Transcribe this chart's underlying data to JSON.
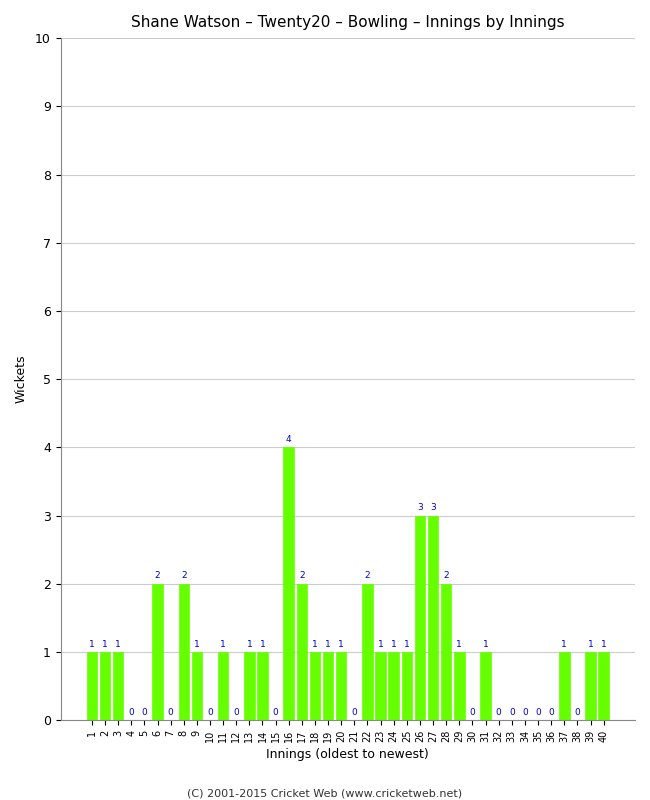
{
  "title": "Shane Watson – Twenty20 – Bowling – Innings by Innings",
  "xlabel": "Innings (oldest to newest)",
  "ylabel": "Wickets",
  "ylim": [
    0,
    10
  ],
  "yticks": [
    0,
    1,
    2,
    3,
    4,
    5,
    6,
    7,
    8,
    9,
    10
  ],
  "bar_color": "#66FF00",
  "bar_edge_color": "#66FF00",
  "label_color": "#0000CC",
  "background_color": "#ffffff",
  "footer": "(C) 2001-2015 Cricket Web (www.cricketweb.net)",
  "innings": [
    1,
    2,
    3,
    4,
    5,
    6,
    7,
    8,
    9,
    10,
    11,
    12,
    13,
    14,
    15,
    16,
    17,
    18,
    19,
    20,
    21,
    22,
    23,
    24,
    25,
    26,
    27,
    28,
    29,
    30,
    31,
    32,
    33,
    34,
    35,
    36,
    37,
    38,
    39,
    40
  ],
  "wickets": [
    1,
    1,
    1,
    0,
    0,
    2,
    0,
    2,
    1,
    0,
    1,
    0,
    1,
    1,
    0,
    4,
    2,
    1,
    1,
    1,
    0,
    2,
    1,
    1,
    1,
    3,
    3,
    2,
    1,
    0,
    1,
    0,
    0,
    0,
    0,
    0,
    1,
    0,
    1,
    1
  ]
}
